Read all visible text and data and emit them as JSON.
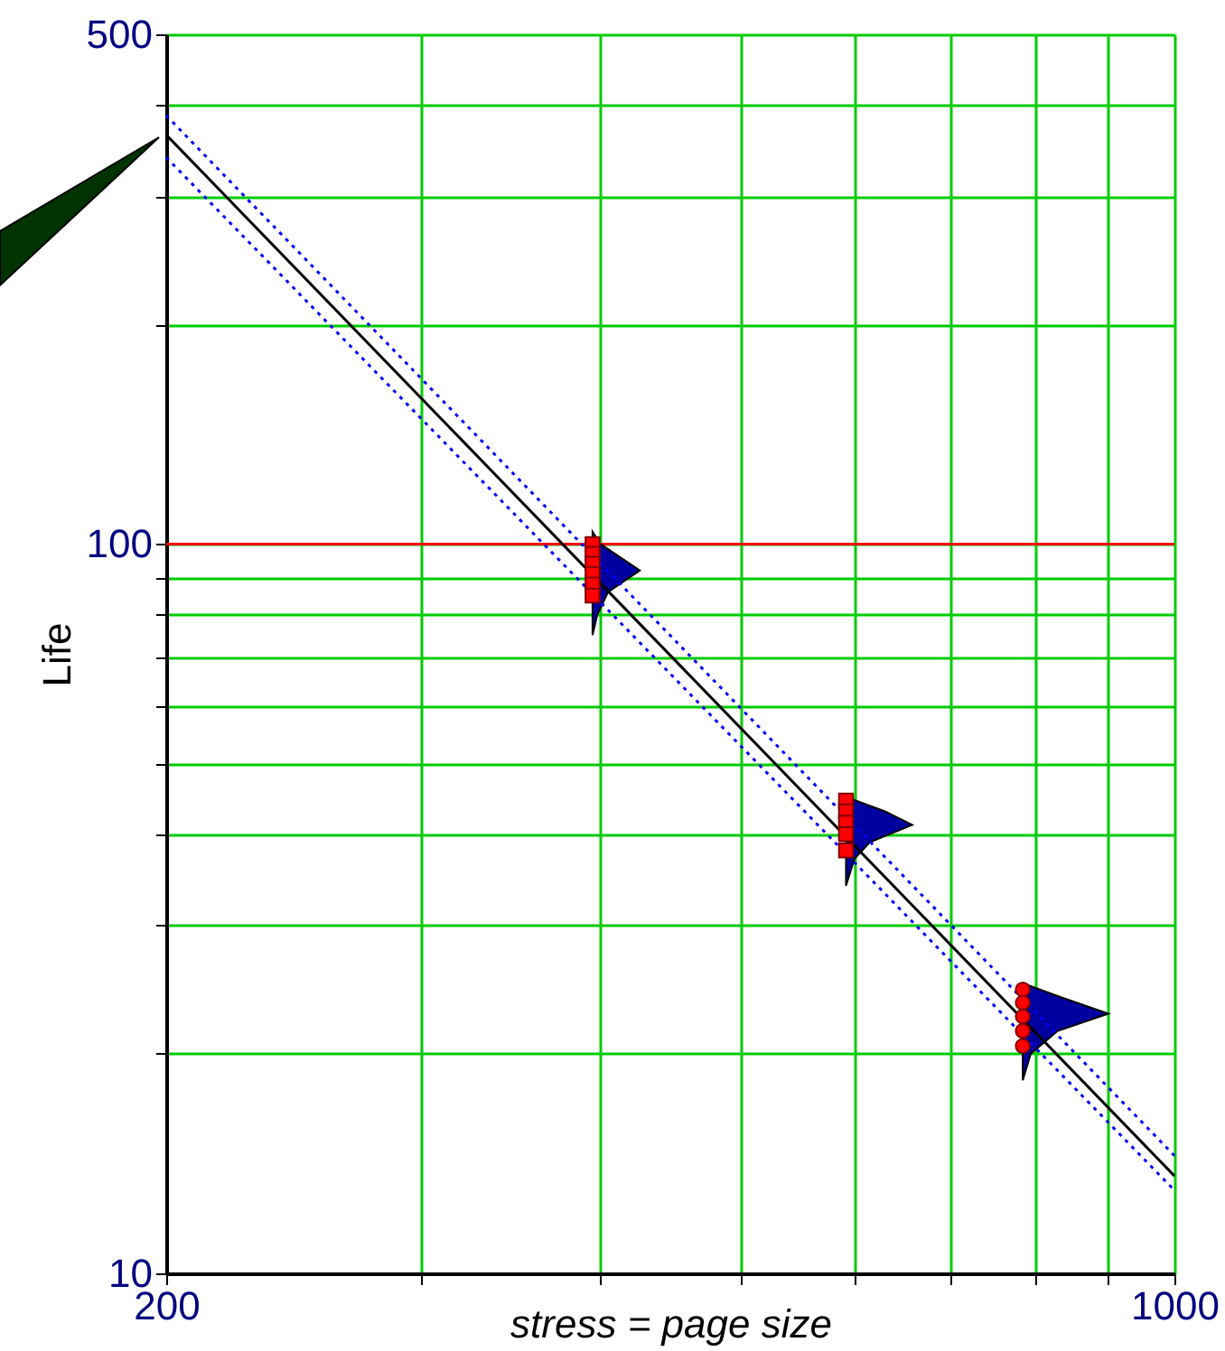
{
  "chart_data": {
    "type": "scatter",
    "xlabel": "stress = page size",
    "ylabel": "Life",
    "log": "xy",
    "grid": true,
    "xlim": [
      200,
      1000
    ],
    "xticks": [
      200,
      {
        "value": 300,
        "label": null
      },
      {
        "value": 400,
        "label": null
      },
      {
        "value": 500,
        "label": null
      },
      {
        "value": 600,
        "label": null
      },
      {
        "value": 700,
        "label": null
      },
      {
        "value": 800,
        "label": null
      },
      {
        "value": 900,
        "label": null
      },
      1000
    ],
    "ylim": [
      10,
      500
    ],
    "yticks": [
      10,
      {
        "value": 20,
        "label": null
      },
      {
        "value": 30,
        "label": null
      },
      {
        "value": 40,
        "label": null
      },
      {
        "value": 50,
        "label": null
      },
      {
        "value": 60,
        "label": null
      },
      {
        "value": 70,
        "label": null
      },
      {
        "value": 80,
        "label": null
      },
      {
        "value": 90,
        "label": null
      },
      100,
      {
        "value": 200,
        "label": null
      },
      {
        "value": 300,
        "label": null
      },
      {
        "value": 400,
        "label": null
      },
      500
    ],
    "ref_lines": [
      {
        "axis": "y",
        "value": 100,
        "color": "#ff0000"
      }
    ],
    "series": [
      {
        "type": "area",
        "color": "#0000a0",
        "x": [
          395,
          400,
          426,
          405,
          398,
          395
        ],
        "values": [
          104,
          100,
          92,
          86,
          80,
          75
        ]
      },
      {
        "type": "area",
        "color": "#0000a0",
        "x": [
          592,
          630,
          658,
          615,
          600,
          592
        ],
        "values": [
          45,
          43,
          41.2,
          39,
          37,
          34
        ]
      },
      {
        "type": "area",
        "color": "#0000a0",
        "x": [
          785,
          830,
          900,
          830,
          795,
          785
        ],
        "values": [
          25,
          24,
          22.7,
          21.5,
          20,
          18.4
        ]
      },
      {
        "type": "line",
        "color": "#000000",
        "line_style": "solid",
        "x": [
          200,
          1000
        ],
        "values": [
          364,
          13.6
        ]
      },
      {
        "type": "line",
        "color": "#0000ff",
        "line_style": "dotted",
        "x": [
          200,
          1000
        ],
        "values": [
          387,
          14.5
        ]
      },
      {
        "type": "line",
        "color": "#0000ff",
        "line_style": "dotted",
        "x": [
          200,
          1000
        ],
        "values": [
          339,
          13.0
        ]
      },
      {
        "color": "#ff0000",
        "marker": "square",
        "x": [
          395,
          395,
          395,
          395,
          395,
          395
        ],
        "values": [
          100,
          97,
          94,
          91,
          88,
          85
        ]
      },
      {
        "color": "#ff0000",
        "marker": "square",
        "x": [
          592,
          592,
          592,
          592,
          592
        ],
        "values": [
          44.5,
          43,
          41.5,
          40,
          38
        ]
      },
      {
        "color": "#ff0000",
        "marker": "circle",
        "x": [
          785,
          785,
          785,
          785,
          785
        ],
        "values": [
          24.5,
          23.5,
          22.5,
          21.5,
          20.5
        ]
      }
    ]
  }
}
